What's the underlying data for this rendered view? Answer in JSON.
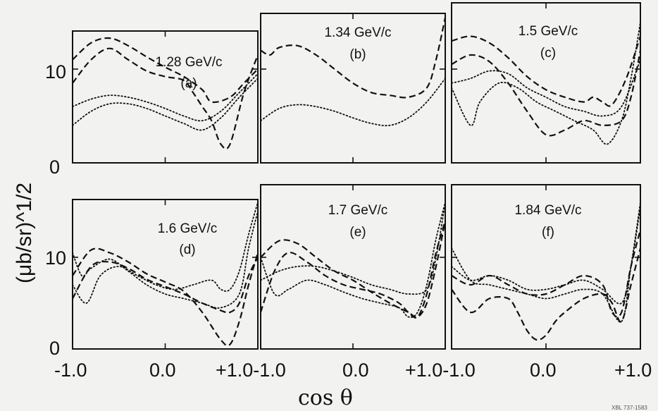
{
  "figure": {
    "ylabel": "(μb/sr)^1/2",
    "xlabel": "cos θ",
    "footnote": "XBL 737-1583"
  },
  "chart_data": [
    {
      "type": "line",
      "momentum": "1.28 GeV/c",
      "tag": "(a)",
      "xlim": [
        -1.0,
        1.0
      ],
      "ylim": [
        0,
        15
      ],
      "series": [
        {
          "style": "dashed",
          "x": [
            -1.0,
            -0.8,
            -0.6,
            -0.4,
            -0.2,
            0.0,
            0.2,
            0.4,
            0.5,
            0.7,
            0.85,
            1.0
          ],
          "y": [
            11.0,
            12.8,
            13.3,
            12.5,
            11.3,
            10.2,
            9.2,
            7.8,
            6.5,
            7.0,
            8.5,
            10.0
          ]
        },
        {
          "style": "dashed",
          "x": [
            -1.0,
            -0.8,
            -0.6,
            -0.4,
            -0.2,
            0.0,
            0.2,
            0.3,
            0.4,
            0.5,
            0.6,
            0.7,
            0.85,
            1.0
          ],
          "y": [
            8.5,
            11.0,
            12.2,
            11.0,
            9.8,
            9.2,
            8.8,
            7.5,
            6.0,
            4.5,
            2.0,
            2.0,
            7.5,
            11.5
          ]
        },
        {
          "style": "dotted",
          "x": [
            -1.0,
            -0.8,
            -0.6,
            -0.4,
            -0.2,
            0.0,
            0.2,
            0.4,
            0.6,
            0.8,
            1.0
          ],
          "y": [
            6.0,
            6.8,
            7.2,
            7.0,
            6.5,
            5.8,
            5.0,
            4.5,
            5.5,
            7.5,
            9.5
          ]
        },
        {
          "style": "dotted",
          "x": [
            -1.0,
            -0.8,
            -0.6,
            -0.4,
            -0.2,
            0.0,
            0.2,
            0.4,
            0.6,
            0.8,
            1.0
          ],
          "y": [
            4.0,
            5.5,
            6.3,
            6.3,
            5.8,
            5.0,
            4.2,
            3.5,
            4.8,
            7.0,
            9.0
          ]
        }
      ]
    },
    {
      "type": "line",
      "momentum": "1.34 GeV/c",
      "tag": "(b)",
      "xlim": [
        -1.0,
        1.0
      ],
      "ylim": [
        0,
        15
      ],
      "series": [
        {
          "style": "dashed",
          "x": [
            -1.0,
            -0.9,
            -0.8,
            -0.6,
            -0.4,
            -0.2,
            0.0,
            0.2,
            0.4,
            0.6,
            0.8,
            0.9,
            1.0
          ],
          "y": [
            12.0,
            11.5,
            12.3,
            12.5,
            11.5,
            10.0,
            8.5,
            7.5,
            7.2,
            7.0,
            8.0,
            11.0,
            15.5
          ]
        },
        {
          "style": "dotted",
          "x": [
            -1.0,
            -0.8,
            -0.6,
            -0.4,
            -0.2,
            0.0,
            0.2,
            0.4,
            0.6,
            0.8,
            1.0
          ],
          "y": [
            4.5,
            5.8,
            6.2,
            6.0,
            5.5,
            4.8,
            4.2,
            4.0,
            4.8,
            6.5,
            9.0
          ]
        }
      ]
    },
    {
      "type": "line",
      "momentum": "1.5 GeV/c",
      "tag": "(c)",
      "xlim": [
        -1.0,
        1.0
      ],
      "ylim": [
        0,
        15
      ],
      "series": [
        {
          "style": "dashed",
          "x": [
            -1.0,
            -0.8,
            -0.6,
            -0.4,
            -0.2,
            0.0,
            0.2,
            0.4,
            0.5,
            0.6,
            0.7,
            0.85,
            1.0
          ],
          "y": [
            13.0,
            13.5,
            12.8,
            11.2,
            9.2,
            7.8,
            7.0,
            6.5,
            7.0,
            6.5,
            6.2,
            9.0,
            13.5
          ]
        },
        {
          "style": "dashed",
          "x": [
            -1.0,
            -0.8,
            -0.6,
            -0.4,
            -0.2,
            0.0,
            0.2,
            0.4,
            0.6,
            0.8,
            0.9,
            1.0
          ],
          "y": [
            10.5,
            11.5,
            10.8,
            8.5,
            5.5,
            3.0,
            3.5,
            4.5,
            4.0,
            4.5,
            7.0,
            12.0
          ]
        },
        {
          "style": "dotted",
          "x": [
            -1.0,
            -0.8,
            -0.6,
            -0.4,
            -0.2,
            0.0,
            0.2,
            0.4,
            0.6,
            0.8,
            1.0
          ],
          "y": [
            8.5,
            9.0,
            9.8,
            9.5,
            8.0,
            7.0,
            6.0,
            5.5,
            5.0,
            6.0,
            11.0
          ]
        },
        {
          "style": "dotted",
          "x": [
            -1.0,
            -0.8,
            -0.7,
            -0.5,
            -0.3,
            -0.1,
            0.1,
            0.3,
            0.5,
            0.65,
            0.8,
            0.9,
            1.0
          ],
          "y": [
            8.0,
            4.0,
            6.5,
            8.5,
            8.0,
            6.5,
            5.5,
            4.5,
            3.5,
            2.0,
            4.5,
            9.0,
            15.0
          ]
        }
      ]
    },
    {
      "type": "line",
      "momentum": "1.6 GeV/c",
      "tag": "(d)",
      "xlim": [
        -1.0,
        1.0
      ],
      "ylim": [
        0,
        15
      ],
      "series": [
        {
          "style": "dashed",
          "x": [
            -1.0,
            -0.8,
            -0.6,
            -0.4,
            -0.2,
            0.0,
            0.2,
            0.4,
            0.6,
            0.7,
            0.8,
            0.9,
            1.0
          ],
          "y": [
            8.0,
            10.8,
            10.5,
            9.5,
            8.2,
            7.3,
            6.3,
            4.0,
            1.0,
            0.5,
            3.0,
            7.0,
            10.5
          ]
        },
        {
          "style": "dashed",
          "x": [
            -1.0,
            -0.8,
            -0.6,
            -0.4,
            -0.2,
            0.0,
            0.2,
            0.4,
            0.6,
            0.7,
            0.8,
            0.9,
            1.0
          ],
          "y": [
            5.5,
            9.0,
            9.5,
            8.8,
            7.6,
            6.8,
            6.0,
            5.0,
            4.2,
            4.0,
            5.0,
            8.0,
            10.0
          ]
        },
        {
          "style": "dotted",
          "x": [
            -1.0,
            -0.9,
            -0.8,
            -0.6,
            -0.4,
            -0.2,
            0.0,
            0.2,
            0.4,
            0.6,
            0.8,
            0.9,
            1.0
          ],
          "y": [
            10.5,
            8.0,
            8.8,
            9.8,
            8.5,
            7.0,
            6.0,
            5.5,
            5.0,
            4.5,
            6.0,
            11.0,
            15.0
          ]
        },
        {
          "style": "dotted",
          "x": [
            -1.0,
            -0.85,
            -0.7,
            -0.5,
            -0.3,
            -0.1,
            0.1,
            0.3,
            0.5,
            0.6,
            0.7,
            0.8,
            0.9,
            1.0
          ],
          "y": [
            7.0,
            5.0,
            8.0,
            9.0,
            8.0,
            7.0,
            6.5,
            7.0,
            7.5,
            6.5,
            6.5,
            8.5,
            12.5,
            16.0
          ]
        }
      ]
    },
    {
      "type": "line",
      "momentum": "1.7 GeV/c",
      "tag": "(e)",
      "xlim": [
        -1.0,
        1.0
      ],
      "ylim": [
        0,
        15
      ],
      "series": [
        {
          "style": "dashed",
          "x": [
            -1.0,
            -0.8,
            -0.6,
            -0.4,
            -0.2,
            0.0,
            0.2,
            0.4,
            0.6,
            0.7,
            0.8,
            0.9,
            1.0
          ],
          "y": [
            10.0,
            11.8,
            11.5,
            10.0,
            8.5,
            7.5,
            6.2,
            5.0,
            4.0,
            3.5,
            5.0,
            9.0,
            14.0
          ]
        },
        {
          "style": "dashed",
          "x": [
            -1.0,
            -0.85,
            -0.7,
            -0.5,
            -0.3,
            -0.1,
            0.1,
            0.3,
            0.5,
            0.6,
            0.7,
            0.8,
            0.9,
            1.0
          ],
          "y": [
            4.0,
            8.5,
            10.5,
            9.5,
            8.0,
            7.0,
            6.5,
            6.0,
            5.0,
            4.0,
            3.5,
            6.0,
            10.5,
            14.0
          ]
        },
        {
          "style": "dotted",
          "x": [
            -1.0,
            -0.8,
            -0.6,
            -0.4,
            -0.2,
            0.0,
            0.2,
            0.4,
            0.6,
            0.8,
            0.9,
            1.0
          ],
          "y": [
            7.5,
            8.5,
            9.0,
            9.0,
            8.5,
            7.8,
            7.0,
            6.5,
            6.0,
            6.5,
            10.0,
            16.0
          ]
        },
        {
          "style": "dotted",
          "x": [
            -1.0,
            -0.85,
            -0.7,
            -0.5,
            -0.3,
            -0.1,
            0.1,
            0.3,
            0.5,
            0.6,
            0.7,
            0.8,
            0.9,
            1.0
          ],
          "y": [
            10.0,
            6.0,
            6.5,
            7.5,
            7.0,
            6.2,
            5.5,
            5.0,
            4.5,
            3.5,
            4.0,
            7.0,
            12.0,
            16.0
          ]
        }
      ]
    },
    {
      "type": "line",
      "momentum": "1.84 GeV/c",
      "tag": "(f)",
      "xlim": [
        -1.0,
        1.0
      ],
      "ylim": [
        0,
        15
      ],
      "series": [
        {
          "style": "dashed",
          "x": [
            -1.0,
            -0.8,
            -0.6,
            -0.4,
            -0.2,
            0.0,
            0.2,
            0.4,
            0.6,
            0.7,
            0.8,
            0.9,
            1.0
          ],
          "y": [
            8.0,
            7.0,
            8.0,
            7.0,
            6.0,
            6.0,
            7.0,
            8.0,
            7.0,
            4.0,
            4.0,
            9.0,
            13.0
          ]
        },
        {
          "style": "dashed",
          "x": [
            -1.0,
            -0.8,
            -0.6,
            -0.4,
            -0.3,
            -0.2,
            -0.1,
            0.0,
            0.1,
            0.2,
            0.4,
            0.6,
            0.7,
            0.8,
            0.9,
            1.0
          ],
          "y": [
            6.5,
            4.0,
            5.5,
            5.5,
            4.0,
            2.0,
            1.0,
            1.5,
            3.0,
            4.0,
            5.5,
            6.0,
            5.0,
            3.0,
            7.0,
            11.0
          ]
        },
        {
          "style": "dotted",
          "x": [
            -1.0,
            -0.8,
            -0.6,
            -0.4,
            -0.2,
            0.0,
            0.2,
            0.4,
            0.6,
            0.8,
            0.9,
            1.0
          ],
          "y": [
            11.0,
            7.5,
            7.0,
            6.5,
            6.0,
            5.5,
            6.0,
            6.5,
            6.0,
            3.0,
            9.0,
            16.0
          ]
        },
        {
          "style": "dotted",
          "x": [
            -1.0,
            -0.8,
            -0.6,
            -0.4,
            -0.2,
            0.0,
            0.2,
            0.4,
            0.6,
            0.8,
            0.9,
            1.0
          ],
          "y": [
            9.0,
            7.5,
            8.0,
            7.5,
            6.5,
            6.5,
            7.0,
            7.5,
            6.5,
            5.0,
            9.0,
            15.5
          ]
        }
      ]
    }
  ],
  "axes": {
    "y_ticks_top": [
      "10",
      "0"
    ],
    "y_ticks_bottom": [
      "10",
      "0"
    ],
    "x_ticks": [
      "-1.0",
      "0.0",
      "+1.0-1.0",
      "0.0",
      "+1.0-1.0",
      "0.0",
      "+1.0"
    ]
  }
}
